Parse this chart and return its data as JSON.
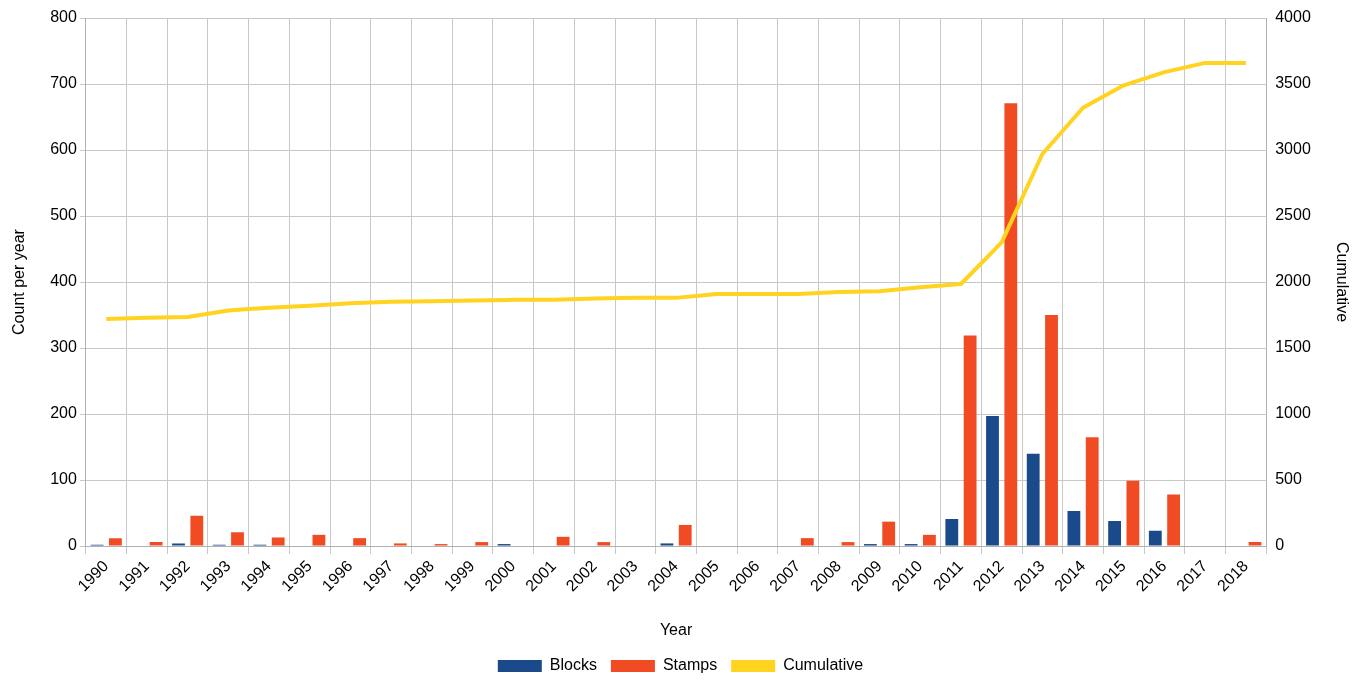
{
  "chart_data": {
    "type": "bar",
    "xlabel": "Year",
    "ylabel": "Count per year",
    "y2label": "Cumulative",
    "categories": [
      "1990",
      "1991",
      "1992",
      "1993",
      "1994",
      "1995",
      "1996",
      "1997",
      "1998",
      "1999",
      "2000",
      "2001",
      "2002",
      "2003",
      "2004",
      "2005",
      "2006",
      "2007",
      "2008",
      "2009",
      "2010",
      "2011",
      "2012",
      "2013",
      "2014",
      "2015",
      "2016",
      "2017",
      "2018"
    ],
    "series": [
      {
        "name": "Blocks",
        "color": "#1a4a8a",
        "values": [
          2,
          0,
          4,
          2,
          2,
          null,
          null,
          0,
          0,
          null,
          3,
          0,
          0,
          0,
          4,
          0,
          0,
          0,
          0,
          3,
          3,
          41,
          197,
          140,
          53,
          38,
          23,
          0,
          null
        ]
      },
      {
        "name": "Stamps",
        "color": "#f04b23",
        "values": [
          12,
          6,
          46,
          21,
          13,
          17,
          12,
          4,
          3,
          6,
          0,
          14,
          6,
          0,
          32,
          0,
          0,
          12,
          6,
          37,
          17,
          319,
          671,
          350,
          165,
          99,
          78,
          0,
          6
        ]
      },
      {
        "name": "Cumulative",
        "type": "line",
        "axis": "y2",
        "color": "#ffd320",
        "values": [
          1720,
          1730,
          1735,
          1785,
          1805,
          1820,
          1840,
          1850,
          1855,
          1860,
          1865,
          1865,
          1875,
          1880,
          1880,
          1910,
          1910,
          1910,
          1925,
          1930,
          1960,
          1985,
          2300,
          2970,
          3320,
          3490,
          3590,
          3660,
          3660
        ]
      }
    ],
    "ylim": [
      0,
      800
    ],
    "yticks": [
      0,
      100,
      200,
      300,
      400,
      500,
      600,
      700,
      800
    ],
    "y2lim": [
      0,
      4000
    ],
    "y2ticks": [
      0,
      500,
      1000,
      1500,
      2000,
      2500,
      3000,
      3500,
      4000
    ],
    "grid": true,
    "legend": "bottom",
    "marker": "none"
  }
}
